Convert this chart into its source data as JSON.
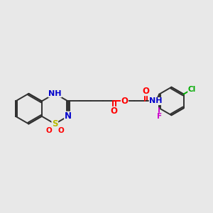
{
  "bg_color": "#e8e8e8",
  "bond_color": "#303030",
  "atom_colors": {
    "N": "#0000cc",
    "O": "#ff0000",
    "S": "#b8b800",
    "Cl": "#00aa00",
    "F": "#cc00cc"
  },
  "line_width": 1.4,
  "font_size": 8.5
}
